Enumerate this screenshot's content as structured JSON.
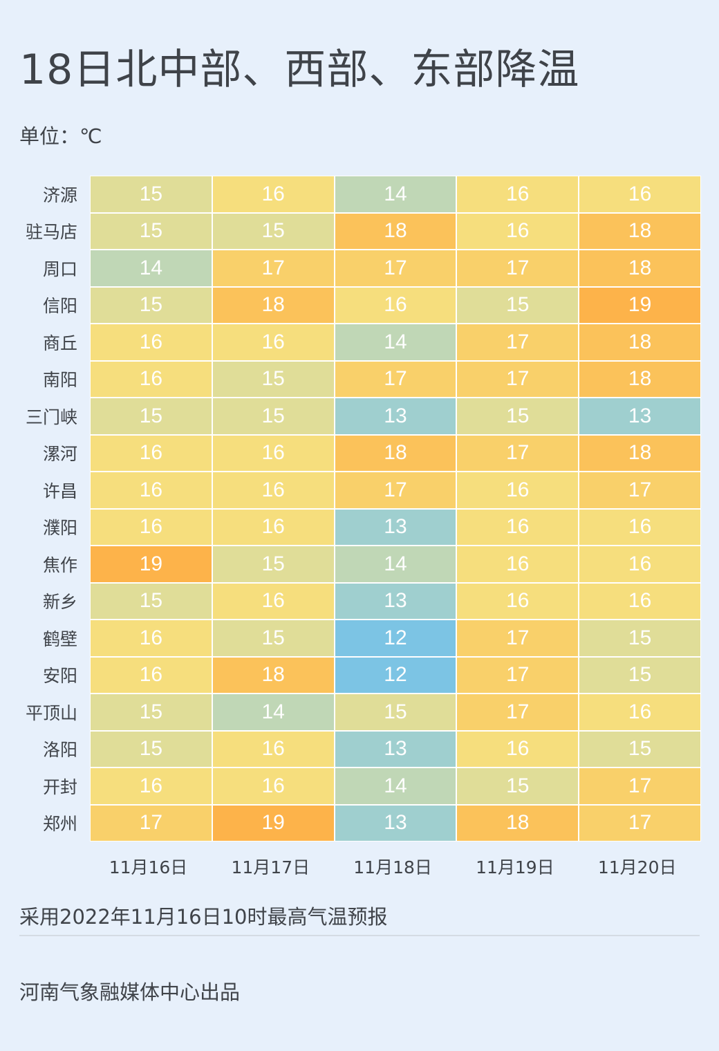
{
  "chart_data": {
    "type": "heatmap",
    "title": "18日北中部、西部、东部降温",
    "unit_label": "单位：℃",
    "columns": [
      "11月16日",
      "11月17日",
      "11月18日",
      "11月19日",
      "11月20日"
    ],
    "rows": [
      "济源",
      "驻马店",
      "周口",
      "信阳",
      "商丘",
      "南阳",
      "三门峡",
      "漯河",
      "许昌",
      "濮阳",
      "焦作",
      "新乡",
      "鹤壁",
      "安阳",
      "平顶山",
      "洛阳",
      "开封",
      "郑州"
    ],
    "values": [
      [
        15,
        16,
        14,
        16,
        16
      ],
      [
        15,
        15,
        18,
        16,
        18
      ],
      [
        14,
        17,
        17,
        17,
        18
      ],
      [
        15,
        18,
        16,
        15,
        19
      ],
      [
        16,
        16,
        14,
        17,
        18
      ],
      [
        16,
        15,
        17,
        17,
        18
      ],
      [
        15,
        15,
        13,
        15,
        13
      ],
      [
        16,
        16,
        18,
        17,
        18
      ],
      [
        16,
        16,
        17,
        16,
        17
      ],
      [
        16,
        16,
        13,
        16,
        16
      ],
      [
        19,
        15,
        14,
        16,
        16
      ],
      [
        15,
        16,
        13,
        16,
        16
      ],
      [
        16,
        15,
        12,
        17,
        15
      ],
      [
        16,
        18,
        12,
        17,
        15
      ],
      [
        15,
        14,
        15,
        17,
        16
      ],
      [
        15,
        16,
        13,
        16,
        15
      ],
      [
        16,
        16,
        14,
        15,
        17
      ],
      [
        17,
        19,
        13,
        18,
        17
      ]
    ],
    "color_scale": {
      "12": "#7cc4e4",
      "13": "#9fcfcf",
      "14": "#c0d7b6",
      "15": "#e0dd98",
      "16": "#f6de7d",
      "17": "#f9d06a",
      "18": "#fbc25a",
      "19": "#fdb34a"
    }
  },
  "footer": {
    "note": "采用2022年11月16日10时最高气温预报",
    "credit": "河南气象融媒体中心出品"
  }
}
